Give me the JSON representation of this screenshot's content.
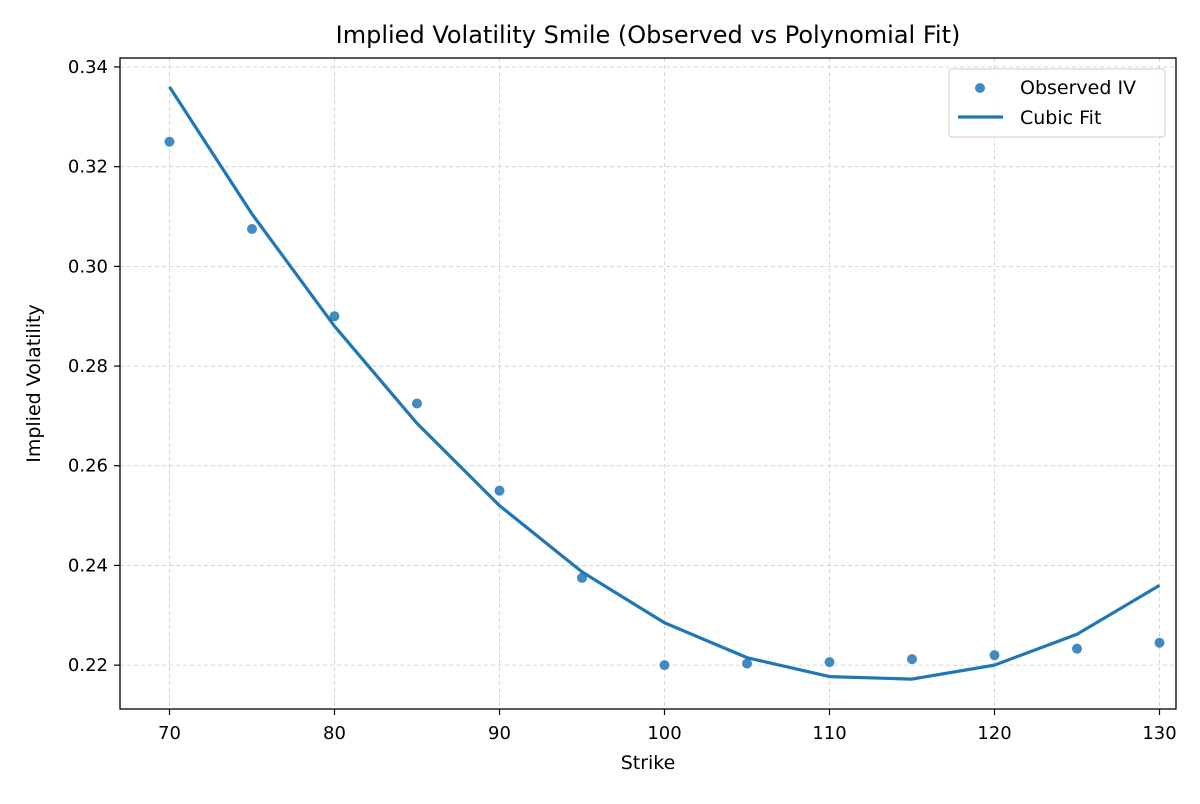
{
  "chart_data": {
    "type": "scatter",
    "title": "Implied Volatility Smile (Observed vs Polynomial Fit)",
    "xlabel": "Strike",
    "ylabel": "Implied Volatility",
    "xlim": [
      67,
      131
    ],
    "ylim": [
      0.2112,
      0.3418
    ],
    "x_ticks": [
      70,
      80,
      90,
      100,
      110,
      120,
      130
    ],
    "x_tick_labels": [
      "70",
      "80",
      "90",
      "100",
      "110",
      "120",
      "130"
    ],
    "y_ticks": [
      0.22,
      0.24,
      0.26,
      0.28,
      0.3,
      0.32,
      0.34
    ],
    "y_tick_labels": [
      "0.22",
      "0.24",
      "0.26",
      "0.28",
      "0.30",
      "0.32",
      "0.34"
    ],
    "grid": true,
    "legend_position": "top-right",
    "series": [
      {
        "name": "Observed IV",
        "kind": "scatter",
        "color": "#1f77b4",
        "x": [
          70,
          75,
          80,
          85,
          90,
          95,
          100,
          105,
          110,
          115,
          120,
          125,
          130
        ],
        "y": [
          0.325,
          0.3075,
          0.29,
          0.2725,
          0.255,
          0.2375,
          0.22,
          0.2203,
          0.2206,
          0.2212,
          0.222,
          0.2233,
          0.2245
        ]
      },
      {
        "name": "Cubic Fit",
        "kind": "line",
        "color": "#1f77b4",
        "x": [
          70,
          75,
          80,
          85,
          90,
          95,
          100,
          105,
          110,
          115,
          120,
          125,
          130
        ],
        "y": [
          0.336,
          0.3105,
          0.288,
          0.2685,
          0.252,
          0.2387,
          0.2285,
          0.2215,
          0.2177,
          0.2172,
          0.22,
          0.2262,
          0.236
        ]
      }
    ]
  }
}
